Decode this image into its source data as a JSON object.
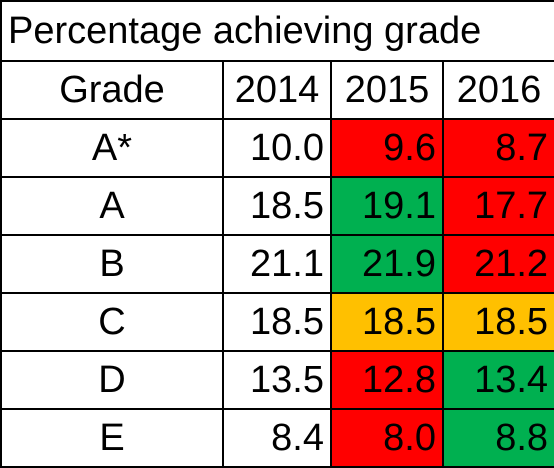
{
  "title": "Percentage achieving grade",
  "headers": [
    "Grade",
    "2014",
    "2015",
    "2016"
  ],
  "colors": {
    "red": "#ff0000",
    "green": "#00b050",
    "amber": "#ffc000",
    "none": "#ffffff"
  },
  "rows": [
    {
      "grade": "A*",
      "values": [
        "10.0",
        "9.6",
        "8.7"
      ],
      "fills": [
        "none",
        "red",
        "red"
      ]
    },
    {
      "grade": "A",
      "values": [
        "18.5",
        "19.1",
        "17.7"
      ],
      "fills": [
        "none",
        "green",
        "red"
      ]
    },
    {
      "grade": "B",
      "values": [
        "21.1",
        "21.9",
        "21.2"
      ],
      "fills": [
        "none",
        "green",
        "red"
      ]
    },
    {
      "grade": "C",
      "values": [
        "18.5",
        "18.5",
        "18.5"
      ],
      "fills": [
        "none",
        "amber",
        "amber"
      ]
    },
    {
      "grade": "D",
      "values": [
        "13.5",
        "12.8",
        "13.4"
      ],
      "fills": [
        "none",
        "red",
        "green"
      ]
    },
    {
      "grade": "E",
      "values": [
        "8.4",
        "8.0",
        "8.8"
      ],
      "fills": [
        "none",
        "red",
        "green"
      ]
    }
  ]
}
